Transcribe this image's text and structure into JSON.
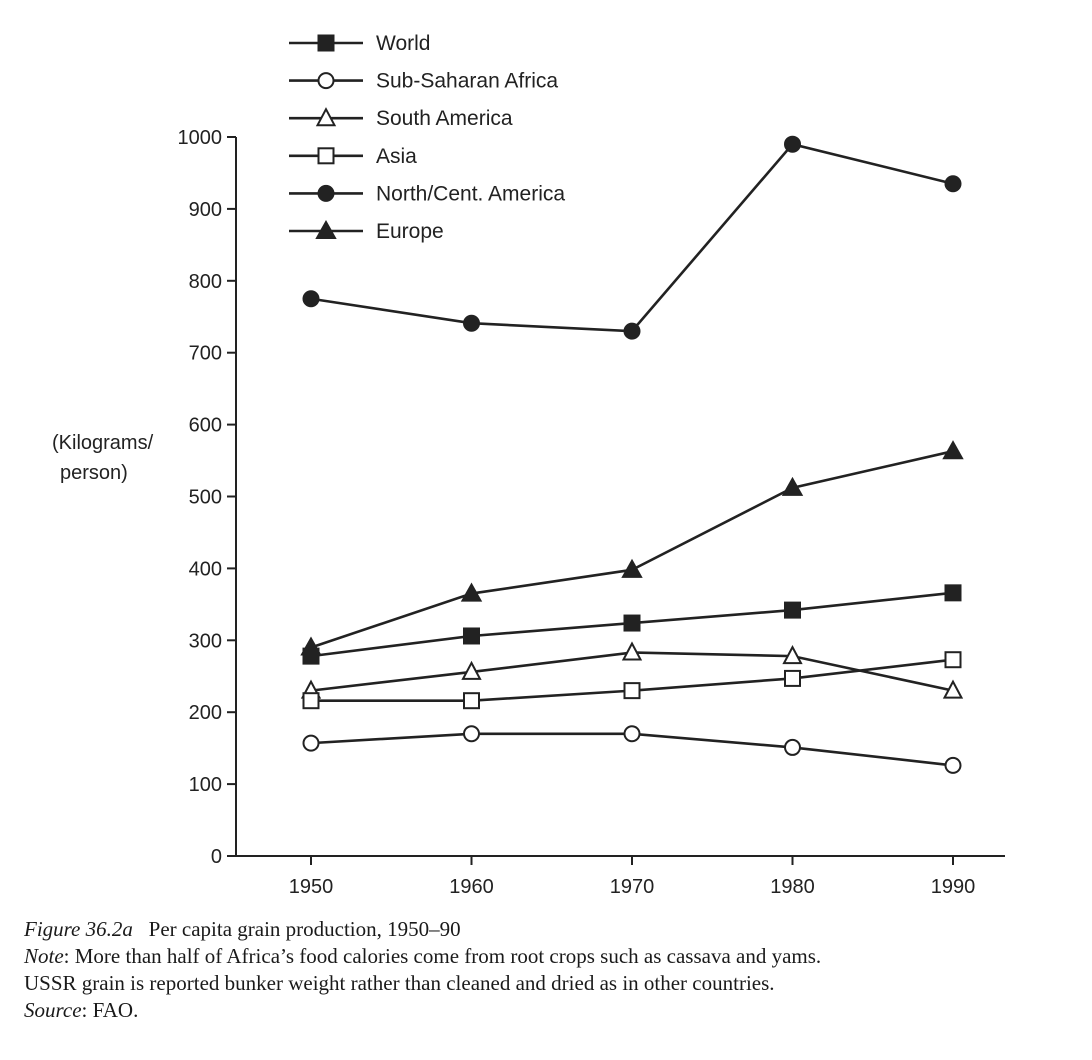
{
  "chart_data": {
    "type": "line",
    "title": "",
    "ylabel_lines": [
      "(Kilograms/",
      "person)"
    ],
    "xlabel": "",
    "x": [
      1950,
      1960,
      1970,
      1980,
      1990
    ],
    "x_tick_labels": [
      "1950",
      "1960",
      "1970",
      "1980",
      "1990"
    ],
    "y_ticks": [
      0,
      100,
      200,
      300,
      400,
      500,
      600,
      700,
      800,
      900,
      1000
    ],
    "y_tick_labels": [
      "0",
      "100",
      "200",
      "300",
      "400",
      "500",
      "600",
      "700",
      "800",
      "900",
      "1000"
    ],
    "ylim": [
      0,
      1000
    ],
    "grid": false,
    "legend_position": "top-left",
    "series": [
      {
        "name": "World",
        "marker": "filled-square",
        "values": [
          278,
          306,
          324,
          342,
          366
        ]
      },
      {
        "name": "Sub-Saharan Africa",
        "marker": "open-circle",
        "values": [
          157,
          170,
          170,
          151,
          126
        ]
      },
      {
        "name": "South America",
        "marker": "open-triangle",
        "values": [
          230,
          256,
          283,
          278,
          230
        ]
      },
      {
        "name": "Asia",
        "marker": "open-square",
        "values": [
          216,
          216,
          230,
          247,
          273
        ]
      },
      {
        "name": "North/Cent. America",
        "marker": "filled-circle",
        "values": [
          775,
          741,
          730,
          990,
          935
        ]
      },
      {
        "name": "Europe",
        "marker": "filled-triangle",
        "values": [
          290,
          365,
          398,
          512,
          563
        ]
      }
    ]
  },
  "caption": {
    "figure_label": "Figure 36.2a",
    "figure_title": "Per capita grain production, 1950–90",
    "note_label": "Note",
    "note_text_line1": ": More than half of Africa’s food calories come from root crops such as cassava and yams.",
    "note_text_line2": "USSR grain is reported bunker weight rather than cleaned and dried as in other countries.",
    "source_label": "Source",
    "source_text": ": FAO."
  }
}
